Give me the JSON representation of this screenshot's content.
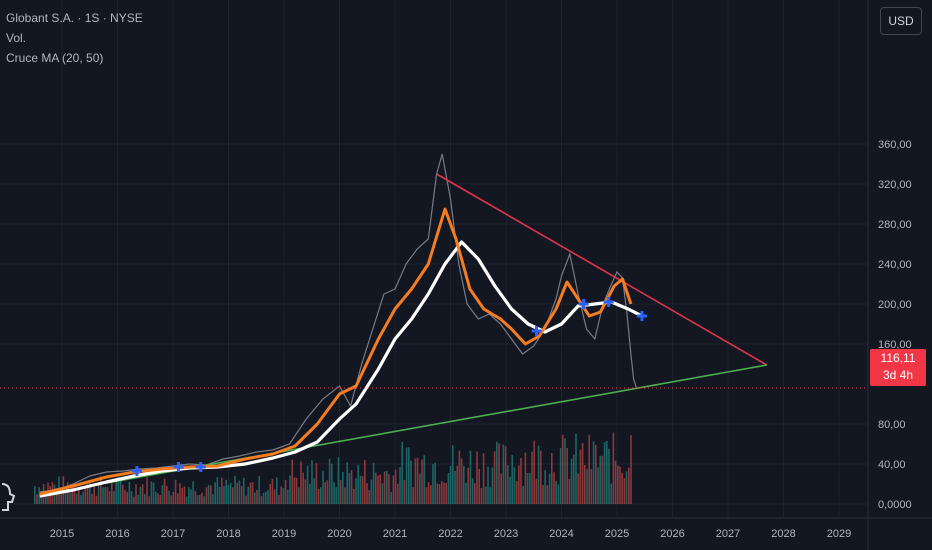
{
  "legend": {
    "symbol": "Globant S.A. · 1S · NYSE",
    "volume": "Vol.",
    "indicator": "Cruce MA (20, 50)"
  },
  "toolbar": {
    "currency": "USD"
  },
  "price_tag": {
    "price": "116,11",
    "countdown": "3d 4h"
  },
  "colors": {
    "background": "#131722",
    "grid": "#1e222d",
    "price": "#787b86",
    "ma_fast": "#f57c1f",
    "ma_slow": "#ffffff",
    "cross_marker": "#2962ff",
    "resistance_line": "#e0344b",
    "support_line": "#4caf50",
    "volume_up": "#26a69a",
    "volume_down": "#ef5350",
    "last_price": "#f23645"
  },
  "chart_data": {
    "type": "line",
    "x_tick_labels": [
      "2015",
      "2016",
      "2017",
      "2018",
      "2019",
      "2020",
      "2021",
      "2022",
      "2023",
      "2024",
      "2025",
      "2026",
      "2027",
      "2028",
      "2029"
    ],
    "y_tick_labels": [
      "360,00",
      "320,00",
      "280,00",
      "240,00",
      "200,00",
      "160,00",
      "80,00",
      "40,00",
      "0,0000"
    ],
    "xlim": [
      2014.6,
      2029.6
    ],
    "ylim": [
      0,
      370
    ],
    "grid": true,
    "price": [
      [
        2014.6,
        12
      ],
      [
        2014.9,
        14
      ],
      [
        2015.2,
        20
      ],
      [
        2015.5,
        28
      ],
      [
        2015.8,
        32
      ],
      [
        2016.1,
        33
      ],
      [
        2016.4,
        35
      ],
      [
        2016.7,
        36
      ],
      [
        2017.0,
        38
      ],
      [
        2017.3,
        40
      ],
      [
        2017.6,
        39
      ],
      [
        2017.9,
        45
      ],
      [
        2018.2,
        48
      ],
      [
        2018.5,
        52
      ],
      [
        2018.8,
        54
      ],
      [
        2019.1,
        60
      ],
      [
        2019.4,
        85
      ],
      [
        2019.7,
        105
      ],
      [
        2020.0,
        118
      ],
      [
        2020.2,
        98
      ],
      [
        2020.4,
        140
      ],
      [
        2020.6,
        175
      ],
      [
        2020.8,
        210
      ],
      [
        2021.0,
        215
      ],
      [
        2021.2,
        240
      ],
      [
        2021.4,
        255
      ],
      [
        2021.6,
        265
      ],
      [
        2021.75,
        330
      ],
      [
        2021.85,
        350
      ],
      [
        2022.0,
        305
      ],
      [
        2022.15,
        240
      ],
      [
        2022.3,
        200
      ],
      [
        2022.5,
        185
      ],
      [
        2022.7,
        190
      ],
      [
        2022.9,
        180
      ],
      [
        2023.1,
        165
      ],
      [
        2023.3,
        150
      ],
      [
        2023.5,
        158
      ],
      [
        2023.7,
        175
      ],
      [
        2023.9,
        205
      ],
      [
        2024.0,
        228
      ],
      [
        2024.15,
        250
      ],
      [
        2024.3,
        210
      ],
      [
        2024.45,
        175
      ],
      [
        2024.6,
        165
      ],
      [
        2024.75,
        200
      ],
      [
        2024.9,
        220
      ],
      [
        2025.0,
        232
      ],
      [
        2025.1,
        226
      ],
      [
        2025.18,
        190
      ],
      [
        2025.25,
        150
      ],
      [
        2025.3,
        125
      ],
      [
        2025.35,
        116
      ]
    ],
    "series": [
      {
        "values": [
          [
            2014.6,
            10
          ],
          [
            2015.2,
            18
          ],
          [
            2015.8,
            27
          ],
          [
            2016.3,
            32
          ],
          [
            2016.8,
            35
          ],
          [
            2017.3,
            37
          ],
          [
            2017.8,
            38
          ],
          [
            2018.3,
            45
          ],
          [
            2018.8,
            50
          ],
          [
            2019.2,
            58
          ],
          [
            2019.6,
            80
          ],
          [
            2020.0,
            110
          ],
          [
            2020.3,
            118
          ],
          [
            2020.7,
            165
          ],
          [
            2021.0,
            195
          ],
          [
            2021.3,
            215
          ],
          [
            2021.6,
            240
          ],
          [
            2021.9,
            295
          ],
          [
            2022.1,
            265
          ],
          [
            2022.35,
            215
          ],
          [
            2022.6,
            195
          ],
          [
            2022.9,
            185
          ],
          [
            2023.1,
            175
          ],
          [
            2023.35,
            160
          ],
          [
            2023.6,
            168
          ],
          [
            2023.9,
            195
          ],
          [
            2024.1,
            222
          ],
          [
            2024.3,
            205
          ],
          [
            2024.5,
            188
          ],
          [
            2024.7,
            192
          ],
          [
            2024.95,
            218
          ],
          [
            2025.1,
            225
          ],
          [
            2025.25,
            200
          ]
        ]
      },
      {
        "values": [
          [
            2014.6,
            8
          ],
          [
            2015.2,
            14
          ],
          [
            2015.8,
            22
          ],
          [
            2016.3,
            28
          ],
          [
            2016.8,
            33
          ],
          [
            2017.3,
            36
          ],
          [
            2017.8,
            37
          ],
          [
            2018.3,
            40
          ],
          [
            2018.8,
            46
          ],
          [
            2019.2,
            52
          ],
          [
            2019.6,
            62
          ],
          [
            2020.0,
            85
          ],
          [
            2020.3,
            100
          ],
          [
            2020.7,
            135
          ],
          [
            2021.0,
            165
          ],
          [
            2021.3,
            185
          ],
          [
            2021.6,
            210
          ],
          [
            2021.9,
            240
          ],
          [
            2022.2,
            262
          ],
          [
            2022.5,
            245
          ],
          [
            2022.8,
            218
          ],
          [
            2023.1,
            195
          ],
          [
            2023.4,
            180
          ],
          [
            2023.7,
            172
          ],
          [
            2024.0,
            180
          ],
          [
            2024.3,
            198
          ],
          [
            2024.6,
            200
          ],
          [
            2024.9,
            202
          ],
          [
            2025.2,
            195
          ],
          [
            2025.45,
            188
          ]
        ]
      }
    ],
    "ma_crosses": [
      [
        2016.35,
        33
      ],
      [
        2017.1,
        37
      ],
      [
        2017.5,
        37
      ],
      [
        2023.55,
        173
      ],
      [
        2024.4,
        200
      ],
      [
        2024.85,
        202
      ],
      [
        2025.45,
        188
      ]
    ],
    "trendlines": [
      {
        "from": [
          2021.75,
          330
        ],
        "to": [
          2027.7,
          139
        ]
      },
      {
        "from": [
          2015.3,
          16
        ],
        "to": [
          2027.7,
          139
        ]
      }
    ],
    "volume_max": 160
  }
}
